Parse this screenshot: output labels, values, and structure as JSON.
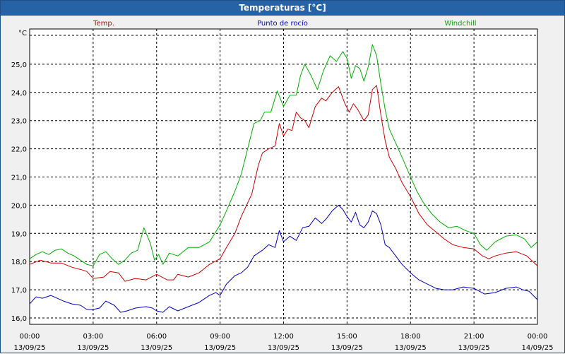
{
  "window": {
    "title": "Temperaturas [°C]"
  },
  "chart_data": {
    "type": "line",
    "ylabel": "°C",
    "ylim": [
      15.8,
      26.0
    ],
    "yticks": [
      16.0,
      17.0,
      18.0,
      19.0,
      20.0,
      21.0,
      22.0,
      23.0,
      24.0,
      25.0
    ],
    "ytick_labels": [
      "16,0",
      "17,0",
      "18,0",
      "19,0",
      "20,0",
      "21,0",
      "22,0",
      "23,0",
      "24,0",
      "25,0"
    ],
    "xlim": [
      0,
      24
    ],
    "xticks": [
      {
        "x": 0,
        "time": "00:00",
        "date": "13/09/25"
      },
      {
        "x": 3,
        "time": "03:00",
        "date": "13/09/25"
      },
      {
        "x": 6,
        "time": "06:00",
        "date": "13/09/25"
      },
      {
        "x": 9,
        "time": "09:00",
        "date": "13/09/25"
      },
      {
        "x": 12,
        "time": "12:00",
        "date": "13/09/25"
      },
      {
        "x": 15,
        "time": "15:00",
        "date": "13/09/25"
      },
      {
        "x": 18,
        "time": "18:00",
        "date": "13/09/25"
      },
      {
        "x": 21,
        "time": "21:00",
        "date": "13/09/25"
      },
      {
        "x": 24,
        "time": "00:00",
        "date": "14/09/25"
      }
    ],
    "grid": true,
    "legend_position": "top",
    "series": [
      {
        "name": "Temp.",
        "color": "#d00000",
        "points": [
          [
            0,
            17.9
          ],
          [
            0.5,
            18.05
          ],
          [
            1,
            17.95
          ],
          [
            1.5,
            17.95
          ],
          [
            2,
            17.8
          ],
          [
            2.5,
            17.7
          ],
          [
            2.7,
            17.65
          ],
          [
            3,
            17.4
          ],
          [
            3.5,
            17.45
          ],
          [
            3.8,
            17.65
          ],
          [
            4.2,
            17.6
          ],
          [
            4.5,
            17.3
          ],
          [
            5,
            17.4
          ],
          [
            5.5,
            17.35
          ],
          [
            6,
            17.55
          ],
          [
            6.5,
            17.35
          ],
          [
            6.8,
            17.35
          ],
          [
            7,
            17.55
          ],
          [
            7.5,
            17.45
          ],
          [
            8,
            17.6
          ],
          [
            8.5,
            17.9
          ],
          [
            9,
            18.1
          ],
          [
            9.3,
            18.5
          ],
          [
            9.7,
            19.0
          ],
          [
            10,
            19.6
          ],
          [
            10.5,
            20.4
          ],
          [
            10.8,
            21.4
          ],
          [
            11,
            21.85
          ],
          [
            11.3,
            22.0
          ],
          [
            11.6,
            22.1
          ],
          [
            11.8,
            22.9
          ],
          [
            12.0,
            22.45
          ],
          [
            12.2,
            22.7
          ],
          [
            12.4,
            22.65
          ],
          [
            12.6,
            23.3
          ],
          [
            12.8,
            23.1
          ],
          [
            13.0,
            23.0
          ],
          [
            13.2,
            22.75
          ],
          [
            13.5,
            23.5
          ],
          [
            13.8,
            23.8
          ],
          [
            14.0,
            23.7
          ],
          [
            14.3,
            24.0
          ],
          [
            14.6,
            24.2
          ],
          [
            14.9,
            23.6
          ],
          [
            15.1,
            23.3
          ],
          [
            15.3,
            23.6
          ],
          [
            15.5,
            23.4
          ],
          [
            15.8,
            23.0
          ],
          [
            16.0,
            23.2
          ],
          [
            16.2,
            24.1
          ],
          [
            16.4,
            24.25
          ],
          [
            16.6,
            23.2
          ],
          [
            16.8,
            22.3
          ],
          [
            17.0,
            21.7
          ],
          [
            17.3,
            21.3
          ],
          [
            17.6,
            20.8
          ],
          [
            18.0,
            20.3
          ],
          [
            18.4,
            19.7
          ],
          [
            18.8,
            19.3
          ],
          [
            19.2,
            19.05
          ],
          [
            19.6,
            18.8
          ],
          [
            20.0,
            18.6
          ],
          [
            20.5,
            18.5
          ],
          [
            21.0,
            18.45
          ],
          [
            21.4,
            18.2
          ],
          [
            21.7,
            18.1
          ],
          [
            22.0,
            18.2
          ],
          [
            22.5,
            18.3
          ],
          [
            23.0,
            18.35
          ],
          [
            23.5,
            18.2
          ],
          [
            24,
            17.85
          ]
        ]
      },
      {
        "name": "Punto de rocío",
        "color": "#0000c8",
        "points": [
          [
            0,
            16.5
          ],
          [
            0.3,
            16.75
          ],
          [
            0.6,
            16.7
          ],
          [
            1,
            16.8
          ],
          [
            1.3,
            16.7
          ],
          [
            1.6,
            16.6
          ],
          [
            2,
            16.5
          ],
          [
            2.4,
            16.45
          ],
          [
            2.7,
            16.3
          ],
          [
            3,
            16.3
          ],
          [
            3.3,
            16.35
          ],
          [
            3.6,
            16.6
          ],
          [
            4,
            16.45
          ],
          [
            4.3,
            16.2
          ],
          [
            4.6,
            16.25
          ],
          [
            5,
            16.35
          ],
          [
            5.5,
            16.4
          ],
          [
            5.8,
            16.35
          ],
          [
            6,
            16.25
          ],
          [
            6.3,
            16.2
          ],
          [
            6.6,
            16.4
          ],
          [
            7,
            16.25
          ],
          [
            7.5,
            16.4
          ],
          [
            8,
            16.55
          ],
          [
            8.5,
            16.8
          ],
          [
            8.8,
            16.9
          ],
          [
            9,
            16.8
          ],
          [
            9.3,
            17.2
          ],
          [
            9.7,
            17.5
          ],
          [
            10,
            17.6
          ],
          [
            10.3,
            17.8
          ],
          [
            10.6,
            18.2
          ],
          [
            11,
            18.4
          ],
          [
            11.3,
            18.6
          ],
          [
            11.6,
            18.5
          ],
          [
            11.8,
            19.1
          ],
          [
            12,
            18.7
          ],
          [
            12.3,
            18.9
          ],
          [
            12.6,
            18.75
          ],
          [
            12.9,
            19.2
          ],
          [
            13.2,
            19.25
          ],
          [
            13.5,
            19.55
          ],
          [
            13.8,
            19.35
          ],
          [
            14.0,
            19.5
          ],
          [
            14.3,
            19.8
          ],
          [
            14.6,
            20.0
          ],
          [
            14.8,
            19.85
          ],
          [
            15.0,
            19.6
          ],
          [
            15.2,
            19.4
          ],
          [
            15.4,
            19.75
          ],
          [
            15.6,
            19.3
          ],
          [
            15.8,
            19.2
          ],
          [
            16.0,
            19.4
          ],
          [
            16.2,
            19.8
          ],
          [
            16.4,
            19.7
          ],
          [
            16.6,
            19.3
          ],
          [
            16.8,
            18.6
          ],
          [
            17.0,
            18.5
          ],
          [
            17.3,
            18.2
          ],
          [
            17.6,
            17.9
          ],
          [
            18.0,
            17.6
          ],
          [
            18.4,
            17.35
          ],
          [
            18.8,
            17.2
          ],
          [
            19.2,
            17.05
          ],
          [
            19.6,
            17.0
          ],
          [
            20.0,
            17.0
          ],
          [
            20.5,
            17.1
          ],
          [
            21.0,
            17.05
          ],
          [
            21.5,
            16.85
          ],
          [
            22.0,
            16.9
          ],
          [
            22.5,
            17.05
          ],
          [
            23.0,
            17.1
          ],
          [
            23.3,
            17.0
          ],
          [
            23.6,
            16.95
          ],
          [
            24,
            16.65
          ]
        ]
      },
      {
        "name": "Windchill",
        "color": "#00b000",
        "points": [
          [
            0,
            18.1
          ],
          [
            0.3,
            18.25
          ],
          [
            0.6,
            18.35
          ],
          [
            0.9,
            18.25
          ],
          [
            1.2,
            18.4
          ],
          [
            1.5,
            18.45
          ],
          [
            1.8,
            18.3
          ],
          [
            2.1,
            18.2
          ],
          [
            2.4,
            18.05
          ],
          [
            2.7,
            17.9
          ],
          [
            3.0,
            17.85
          ],
          [
            3.3,
            18.25
          ],
          [
            3.6,
            18.35
          ],
          [
            3.9,
            18.1
          ],
          [
            4.2,
            17.9
          ],
          [
            4.5,
            18.05
          ],
          [
            4.8,
            18.3
          ],
          [
            5.1,
            18.4
          ],
          [
            5.4,
            19.2
          ],
          [
            5.7,
            18.65
          ],
          [
            5.9,
            18.05
          ],
          [
            6.1,
            18.25
          ],
          [
            6.3,
            17.9
          ],
          [
            6.6,
            18.3
          ],
          [
            7.0,
            18.2
          ],
          [
            7.5,
            18.5
          ],
          [
            8.0,
            18.5
          ],
          [
            8.5,
            18.7
          ],
          [
            9.0,
            19.3
          ],
          [
            9.3,
            19.8
          ],
          [
            9.7,
            20.5
          ],
          [
            10,
            21.1
          ],
          [
            10.3,
            22.0
          ],
          [
            10.6,
            22.9
          ],
          [
            10.9,
            23.0
          ],
          [
            11.1,
            23.3
          ],
          [
            11.4,
            23.3
          ],
          [
            11.7,
            24.05
          ],
          [
            12.0,
            23.5
          ],
          [
            12.3,
            23.9
          ],
          [
            12.6,
            23.9
          ],
          [
            12.8,
            24.6
          ],
          [
            13.0,
            25.0
          ],
          [
            13.3,
            24.6
          ],
          [
            13.6,
            24.1
          ],
          [
            13.9,
            24.8
          ],
          [
            14.2,
            25.3
          ],
          [
            14.5,
            25.1
          ],
          [
            14.8,
            25.45
          ],
          [
            15.0,
            25.2
          ],
          [
            15.2,
            24.5
          ],
          [
            15.4,
            24.95
          ],
          [
            15.6,
            24.85
          ],
          [
            15.8,
            24.4
          ],
          [
            16.0,
            24.9
          ],
          [
            16.2,
            25.7
          ],
          [
            16.4,
            25.3
          ],
          [
            16.6,
            24.3
          ],
          [
            16.8,
            23.4
          ],
          [
            17.0,
            22.7
          ],
          [
            17.3,
            22.2
          ],
          [
            17.6,
            21.7
          ],
          [
            18.0,
            21.0
          ],
          [
            18.3,
            20.5
          ],
          [
            18.6,
            20.1
          ],
          [
            19.0,
            19.7
          ],
          [
            19.4,
            19.4
          ],
          [
            19.8,
            19.2
          ],
          [
            20.2,
            19.25
          ],
          [
            20.6,
            19.1
          ],
          [
            21.0,
            19.0
          ],
          [
            21.3,
            18.6
          ],
          [
            21.6,
            18.4
          ],
          [
            22.0,
            18.7
          ],
          [
            22.5,
            18.9
          ],
          [
            23.0,
            18.95
          ],
          [
            23.4,
            18.8
          ],
          [
            23.7,
            18.5
          ],
          [
            24,
            18.7
          ]
        ]
      }
    ]
  }
}
